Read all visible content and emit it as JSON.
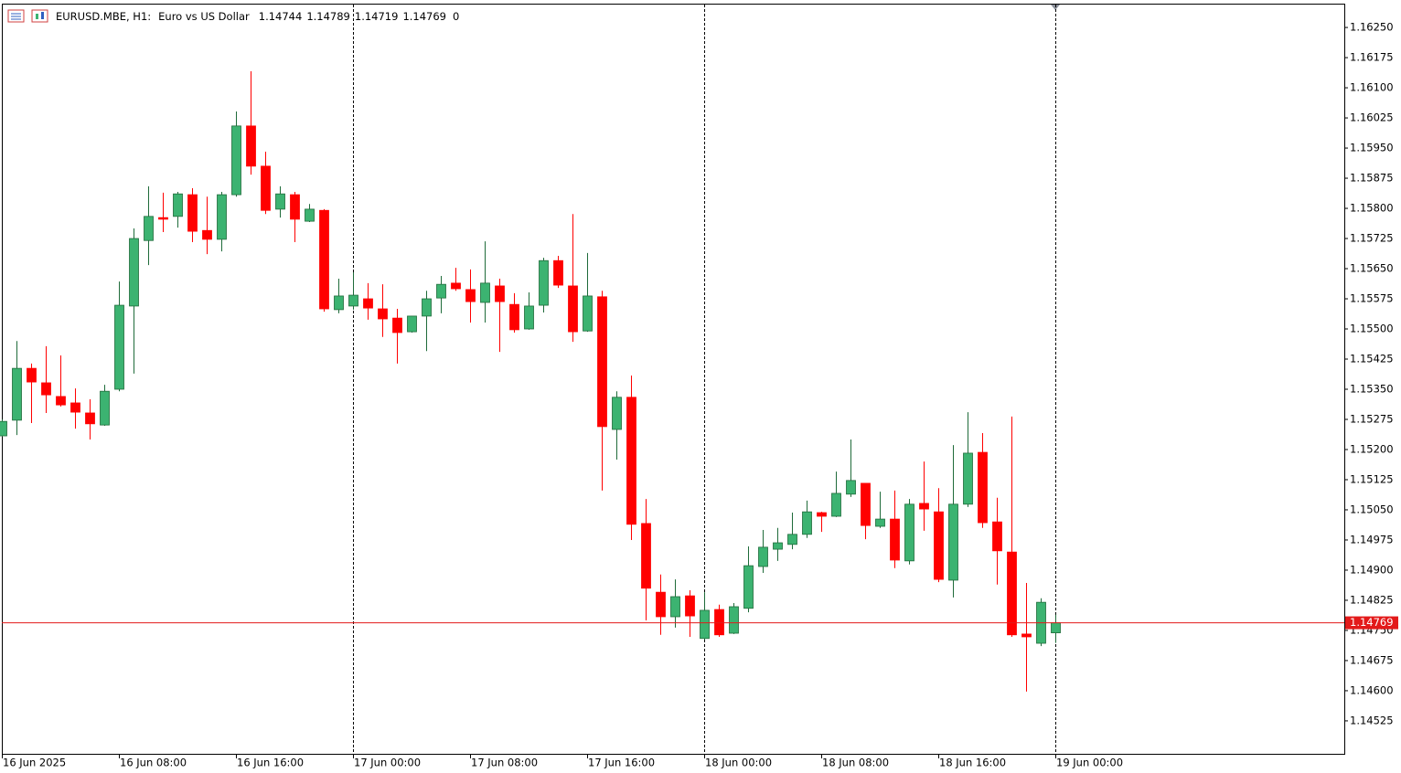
{
  "chart_data": {
    "type": "candlestick",
    "symbol": "EURUSD.MBE, H1:",
    "description": "Euro vs US Dollar",
    "header_value": 0,
    "up_color": "#3cb371",
    "down_color": "#ff0000",
    "price_line_color": "#e31a1a",
    "x": [
      "2025-06-16 00:00",
      "2025-06-16 01:00",
      "2025-06-16 02:00",
      "2025-06-16 03:00",
      "2025-06-16 04:00",
      "2025-06-16 05:00",
      "2025-06-16 06:00",
      "2025-06-16 07:00",
      "2025-06-16 08:00",
      "2025-06-16 09:00",
      "2025-06-16 10:00",
      "2025-06-16 11:00",
      "2025-06-16 12:00",
      "2025-06-16 13:00",
      "2025-06-16 14:00",
      "2025-06-16 15:00",
      "2025-06-16 16:00",
      "2025-06-16 17:00",
      "2025-06-16 18:00",
      "2025-06-16 19:00",
      "2025-06-16 20:00",
      "2025-06-16 21:00",
      "2025-06-16 22:00",
      "2025-06-16 23:00",
      "2025-06-17 00:00",
      "2025-06-17 01:00",
      "2025-06-17 02:00",
      "2025-06-17 03:00",
      "2025-06-17 04:00",
      "2025-06-17 05:00",
      "2025-06-17 06:00",
      "2025-06-17 07:00",
      "2025-06-17 08:00",
      "2025-06-17 09:00",
      "2025-06-17 10:00",
      "2025-06-17 11:00",
      "2025-06-17 12:00",
      "2025-06-17 13:00",
      "2025-06-17 14:00",
      "2025-06-17 15:00",
      "2025-06-17 16:00",
      "2025-06-17 17:00",
      "2025-06-17 18:00",
      "2025-06-17 19:00",
      "2025-06-17 20:00",
      "2025-06-17 21:00",
      "2025-06-17 22:00",
      "2025-06-17 23:00",
      "2025-06-18 00:00",
      "2025-06-18 01:00",
      "2025-06-18 02:00",
      "2025-06-18 03:00",
      "2025-06-18 04:00",
      "2025-06-18 05:00",
      "2025-06-18 06:00",
      "2025-06-18 07:00",
      "2025-06-18 08:00",
      "2025-06-18 09:00",
      "2025-06-18 10:00",
      "2025-06-18 11:00",
      "2025-06-18 12:00",
      "2025-06-18 13:00",
      "2025-06-18 14:00",
      "2025-06-18 15:00",
      "2025-06-18 16:00",
      "2025-06-18 17:00",
      "2025-06-18 18:00",
      "2025-06-18 19:00",
      "2025-06-18 20:00",
      "2025-06-18 21:00",
      "2025-06-18 22:00",
      "2025-06-18 23:00",
      "2025-06-19 00:00"
    ],
    "open": [
      1.15234,
      1.15273,
      1.15402,
      1.15366,
      1.15332,
      1.15316,
      1.15291,
      1.15261,
      1.1535,
      1.15557,
      1.1572,
      1.15777,
      1.1578,
      1.15834,
      1.15745,
      1.15723,
      1.15834,
      1.16005,
      1.15905,
      1.15798,
      1.15834,
      1.15768,
      1.15795,
      1.15548,
      1.15557,
      1.15575,
      1.1555,
      1.15527,
      1.15493,
      1.15532,
      1.15577,
      1.15614,
      1.15598,
      1.15566,
      1.15607,
      1.15561,
      1.155,
      1.15559,
      1.1567,
      1.15607,
      1.15495,
      1.1558,
      1.1525,
      1.1533,
      1.15016,
      1.14845,
      1.14784,
      1.14836,
      1.1473,
      1.14802,
      1.14743,
      1.14805,
      1.14909,
      1.14952,
      1.14964,
      1.14989,
      1.15043,
      1.15034,
      1.15089,
      1.15116,
      1.15009,
      1.15027,
      1.14923,
      1.15066,
      1.15045,
      1.14875,
      1.15064,
      1.15193,
      1.1502,
      1.14945,
      1.14741,
      1.14718,
      1.14744
    ],
    "high": [
      1.15275,
      1.1547,
      1.15414,
      1.15457,
      1.15434,
      1.15352,
      1.15325,
      1.15361,
      1.15618,
      1.1575,
      1.15855,
      1.15839,
      1.15841,
      1.1585,
      1.15829,
      1.15841,
      1.16041,
      1.16141,
      1.15941,
      1.15855,
      1.15841,
      1.15811,
      1.15798,
      1.15625,
      1.15641,
      1.15614,
      1.15611,
      1.1555,
      1.15532,
      1.15595,
      1.15632,
      1.15652,
      1.15648,
      1.15718,
      1.15625,
      1.15589,
      1.15591,
      1.15677,
      1.15682,
      1.15786,
      1.15689,
      1.15595,
      1.15345,
      1.15384,
      1.15077,
      1.14889,
      1.14877,
      1.1485,
      1.14845,
      1.14814,
      1.14818,
      1.14959,
      1.15,
      1.15005,
      1.15043,
      1.15073,
      1.15045,
      1.15145,
      1.15225,
      1.15116,
      1.15095,
      1.15098,
      1.15077,
      1.1517,
      1.15104,
      1.15211,
      1.15293,
      1.15241,
      1.1508,
      1.15282,
      1.14868,
      1.1483,
      1.14789
    ],
    "low": [
      1.15232,
      1.15236,
      1.15266,
      1.15291,
      1.15307,
      1.15252,
      1.15225,
      1.15259,
      1.15345,
      1.15389,
      1.15659,
      1.15741,
      1.15752,
      1.15716,
      1.15686,
      1.15693,
      1.15829,
      1.15884,
      1.15786,
      1.15777,
      1.15716,
      1.15766,
      1.15543,
      1.15539,
      1.15548,
      1.15523,
      1.1548,
      1.15414,
      1.15491,
      1.15445,
      1.15539,
      1.15595,
      1.15516,
      1.15516,
      1.15443,
      1.15491,
      1.15498,
      1.15541,
      1.15602,
      1.15468,
      1.15493,
      1.15098,
      1.15175,
      1.14975,
      1.14775,
      1.14739,
      1.14757,
      1.14734,
      1.14727,
      1.14734,
      1.14741,
      1.14795,
      1.14893,
      1.14923,
      1.14952,
      1.1498,
      1.14995,
      1.15032,
      1.15082,
      1.14977,
      1.15005,
      1.14905,
      1.14914,
      1.14998,
      1.1487,
      1.14832,
      1.15057,
      1.15005,
      1.14864,
      1.14734,
      1.14598,
      1.14711,
      1.14719
    ],
    "close": [
      1.1527,
      1.15402,
      1.15368,
      1.15336,
      1.15311,
      1.15293,
      1.15264,
      1.15345,
      1.15559,
      1.15725,
      1.1578,
      1.15773,
      1.15836,
      1.15743,
      1.15723,
      1.15834,
      1.16005,
      1.15905,
      1.15795,
      1.15836,
      1.15773,
      1.15798,
      1.1555,
      1.15582,
      1.15584,
      1.15552,
      1.15525,
      1.15491,
      1.15532,
      1.15575,
      1.15611,
      1.156,
      1.15568,
      1.15614,
      1.15568,
      1.15498,
      1.15557,
      1.1567,
      1.15609,
      1.15493,
      1.15582,
      1.15257,
      1.1533,
      1.15014,
      1.14855,
      1.14784,
      1.14834,
      1.14786,
      1.148,
      1.14739,
      1.14809,
      1.14911,
      1.14957,
      1.14968,
      1.14989,
      1.15045,
      1.15034,
      1.15091,
      1.15123,
      1.15011,
      1.15027,
      1.14925,
      1.15064,
      1.15052,
      1.14877,
      1.15064,
      1.15191,
      1.15018,
      1.14948,
      1.14739,
      1.14734,
      1.1482,
      1.14769
    ],
    "ylim": [
      1.14443,
      1.16307
    ],
    "yticks": [
      {
        "value": 1.1625,
        "label": "1.16250"
      },
      1.16175,
      {
        "value": 1.161,
        "label": "1.16100"
      },
      1.16025,
      {
        "value": 1.1595,
        "label": "1.15950"
      },
      1.15875,
      {
        "value": 1.158,
        "label": "1.15800"
      },
      1.15725,
      {
        "value": 1.1565,
        "label": "1.15650"
      },
      1.15575,
      {
        "value": 1.155,
        "label": "1.15500"
      },
      1.15425,
      {
        "value": 1.1535,
        "label": "1.15350"
      },
      1.15275,
      {
        "value": 1.152,
        "label": "1.15200"
      },
      1.15125,
      {
        "value": 1.1505,
        "label": "1.15050"
      },
      1.14975,
      {
        "value": 1.149,
        "label": "1.14900"
      },
      1.14825,
      {
        "value": 1.1475,
        "label": "1.14750"
      },
      1.14675,
      {
        "value": 1.146,
        "label": "1.14600"
      },
      1.14525
    ],
    "xticks": [
      {
        "value": "2025-06-16 00:00",
        "label": "16 Jun 2025"
      },
      {
        "value": "2025-06-16 08:00",
        "label": "16 Jun 08:00"
      },
      {
        "value": "2025-06-16 16:00",
        "label": "16 Jun 16:00"
      },
      {
        "value": "2025-06-17 00:00",
        "label": "17 Jun 00:00"
      },
      {
        "value": "2025-06-17 08:00",
        "label": "17 Jun 08:00"
      },
      {
        "value": "2025-06-17 16:00",
        "label": "17 Jun 16:00"
      },
      {
        "value": "2025-06-18 00:00",
        "label": "18 Jun 00:00"
      },
      {
        "value": "2025-06-18 08:00",
        "label": "18 Jun 08:00"
      },
      {
        "value": "2025-06-18 16:00",
        "label": "18 Jun 16:00"
      },
      {
        "value": "2025-06-19 00:00",
        "label": "19 Jun 00:00"
      }
    ],
    "separators": [
      "2025-06-17 00:00",
      "2025-06-18 00:00",
      "2025-06-19 00:00"
    ],
    "grid": false
  }
}
